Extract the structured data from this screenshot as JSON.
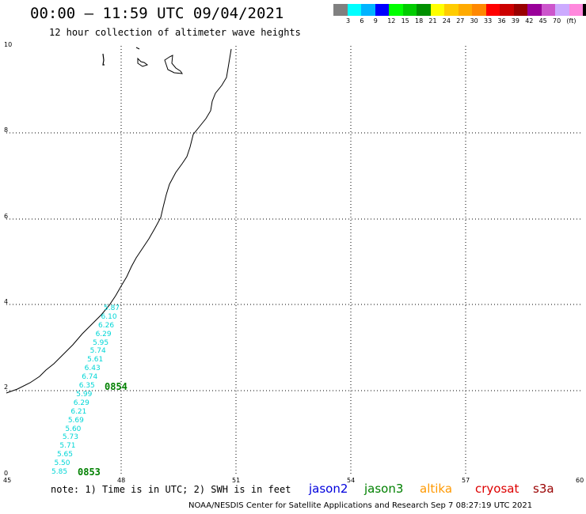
{
  "title": "00:00 – 11:59 UTC 09/04/2021",
  "subtitle": "12 hour collection of altimeter wave heights",
  "legend": {
    "colors": [
      "#808080",
      "#00ffff",
      "#00b4ff",
      "#0000ff",
      "#00ff00",
      "#00cc00",
      "#009000",
      "#ffff00",
      "#ffcc00",
      "#ffaa00",
      "#ff8800",
      "#ff0000",
      "#cc0000",
      "#990000",
      "#990099",
      "#cc55cc",
      "#ccaaff",
      "#ff88dd",
      "#000000"
    ],
    "labels": [
      "3",
      "6",
      "9",
      "12",
      "15",
      "18",
      "21",
      "24",
      "27",
      "30",
      "33",
      "36",
      "39",
      "42",
      "45",
      "70",
      "(ft)"
    ]
  },
  "axes": {
    "x_ticks": [
      "45",
      "48",
      "51",
      "54",
      "57",
      "60"
    ],
    "y_ticks": [
      "0",
      "2",
      "4",
      "6",
      "8",
      "10"
    ]
  },
  "wave_heights": [
    "5.87",
    "6.10",
    "6.26",
    "6.29",
    "5.95",
    "5.74",
    "5.61",
    "6.43",
    "6.74",
    "6.35",
    "5.99",
    "6.29",
    "6.21",
    "5.69",
    "5.60",
    "5.73",
    "5.71",
    "5.65",
    "5.50",
    "5.85"
  ],
  "times": [
    "0854",
    "0853"
  ],
  "note": "note: 1) Time is in UTC; 2) SWH is in feet",
  "satellites": [
    {
      "name": "jason2",
      "color": "#0000dd"
    },
    {
      "name": "jason3",
      "color": "#008000"
    },
    {
      "name": "altika",
      "color": "#ff9900"
    },
    {
      "name": "cryosat",
      "color": "#dd0000"
    },
    {
      "name": "s3a",
      "color": "#990000"
    }
  ],
  "footer": "NOAA/NESDIS Center for Satellite Applications and Research   Sep  7 08:27:19 UTC 2021"
}
